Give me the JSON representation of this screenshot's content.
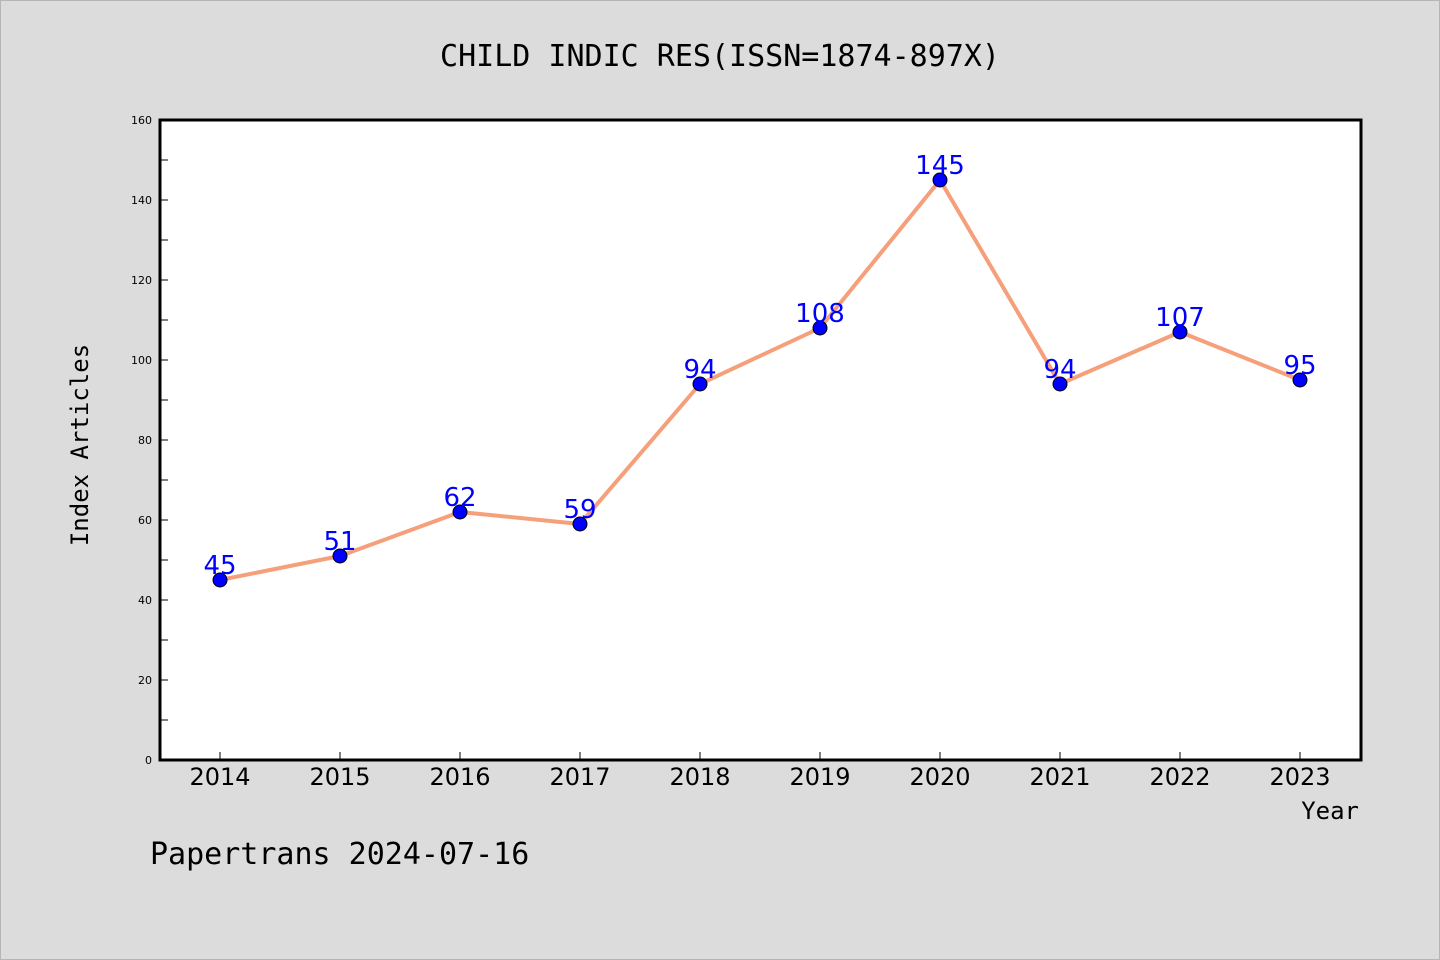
{
  "chart_data": {
    "type": "line",
    "title": "CHILD INDIC RES(ISSN=1874-897X)",
    "xlabel": "Year",
    "ylabel": "Index Articles",
    "categories": [
      "2014",
      "2015",
      "2016",
      "2017",
      "2018",
      "2019",
      "2020",
      "2021",
      "2022",
      "2023"
    ],
    "series": [
      {
        "values": [
          45,
          51,
          62,
          59,
          94,
          108,
          145,
          94,
          107,
          95
        ]
      }
    ],
    "ylim": [
      0,
      160
    ],
    "yticks": [
      0,
      20,
      40,
      60,
      80,
      100,
      120,
      140,
      160
    ],
    "grid": false,
    "data_labels": true,
    "colors": {
      "line": "#f5a07a",
      "marker": "#0000ff",
      "data_label": "#0000ff",
      "plot_background": "#ffffff",
      "page_background": "#dcdcdc"
    }
  },
  "footer": "Papertrans 2024-07-16"
}
